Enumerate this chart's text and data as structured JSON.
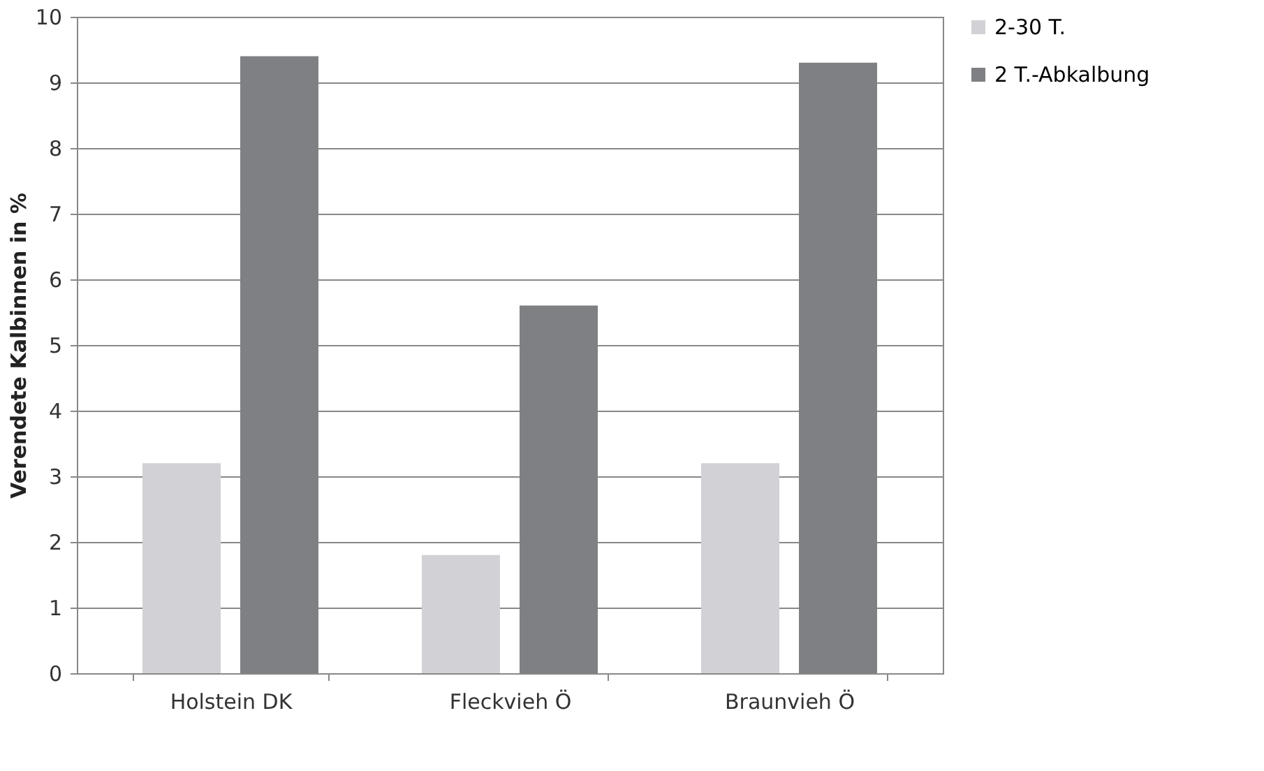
{
  "chart_data": {
    "type": "bar",
    "ylabel": "Verendete Kalbinnen in %",
    "categories": [
      "Holstein DK",
      "Fleckvieh Ö",
      "Braunvieh Ö"
    ],
    "series": [
      {
        "name": "2-30 T.",
        "color": "#d2d2d6",
        "values": [
          3.2,
          1.8,
          3.2
        ]
      },
      {
        "name": "2 T.-Abkalbung",
        "color": "#7f8083",
        "values": [
          9.4,
          5.6,
          9.3
        ]
      }
    ],
    "ylim": [
      0,
      10
    ],
    "yticks": [
      0,
      1,
      2,
      3,
      4,
      5,
      6,
      7,
      8,
      9,
      10
    ],
    "grid": "y",
    "legend": "right"
  }
}
